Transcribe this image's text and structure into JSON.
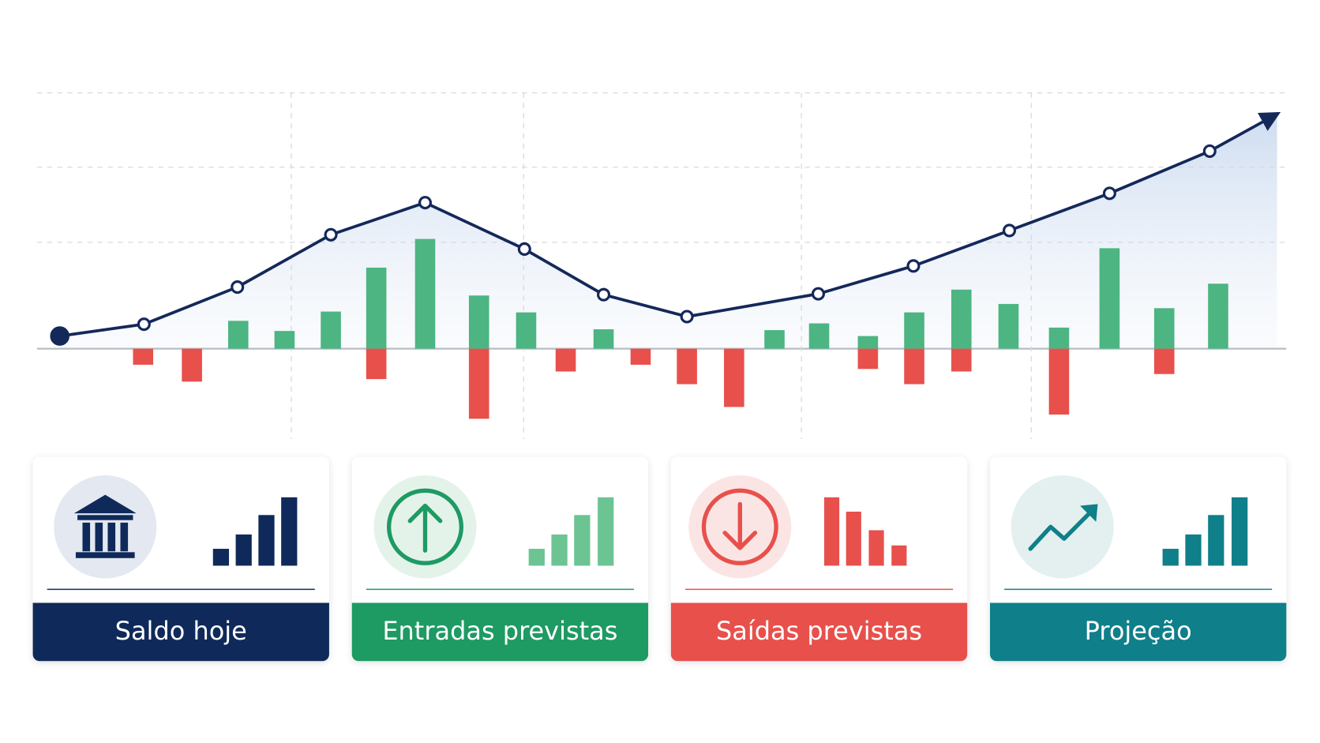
{
  "chart_data": {
    "type": "bar",
    "xlim": [
      44,
      1528
    ],
    "ylim": [
      -107,
      313
    ],
    "xticks": [
      346,
      622,
      952,
      1225
    ],
    "yticks": [
      0,
      126,
      215,
      303
    ],
    "grid": true,
    "x": [
      170,
      228,
      283,
      338,
      393,
      447,
      505,
      569,
      625,
      672,
      717,
      761,
      816,
      872,
      920,
      973,
      1031,
      1086,
      1142,
      1198,
      1258,
      1318,
      1383,
      1447
    ],
    "series": [
      {
        "type": "bar",
        "color": "#4cb582",
        "values": [
          null,
          null,
          33,
          21,
          44,
          96,
          130,
          63,
          43,
          null,
          23,
          null,
          null,
          null,
          22,
          30,
          15,
          43,
          70,
          53,
          25,
          119,
          48,
          77
        ]
      },
      {
        "type": "bar",
        "color": "#e8504c",
        "values": [
          -19,
          -39,
          null,
          null,
          null,
          -36,
          null,
          -83,
          null,
          -27,
          null,
          -19,
          -42,
          -69,
          null,
          null,
          -24,
          -42,
          -27,
          null,
          -78,
          null,
          -30,
          null
        ]
      },
      {
        "type": "line",
        "color": "#14285a",
        "x": [
          71,
          171,
          282,
          393,
          505,
          623,
          717,
          816,
          972,
          1085,
          1199,
          1318,
          1437,
          1517
        ],
        "values": [
          15,
          29,
          73,
          135,
          173,
          118,
          64,
          38,
          65,
          98,
          140,
          184,
          234,
          278
        ]
      }
    ]
  },
  "cards": [
    {
      "label": "Saldo hoje",
      "color": "#0f2a5a"
    },
    {
      "label": "Entradas previstas",
      "color": "#1e9a63"
    },
    {
      "label": "Saídas previstas",
      "color": "#e8504c"
    },
    {
      "label": "Projeção",
      "color": "#0f7f8a"
    }
  ]
}
